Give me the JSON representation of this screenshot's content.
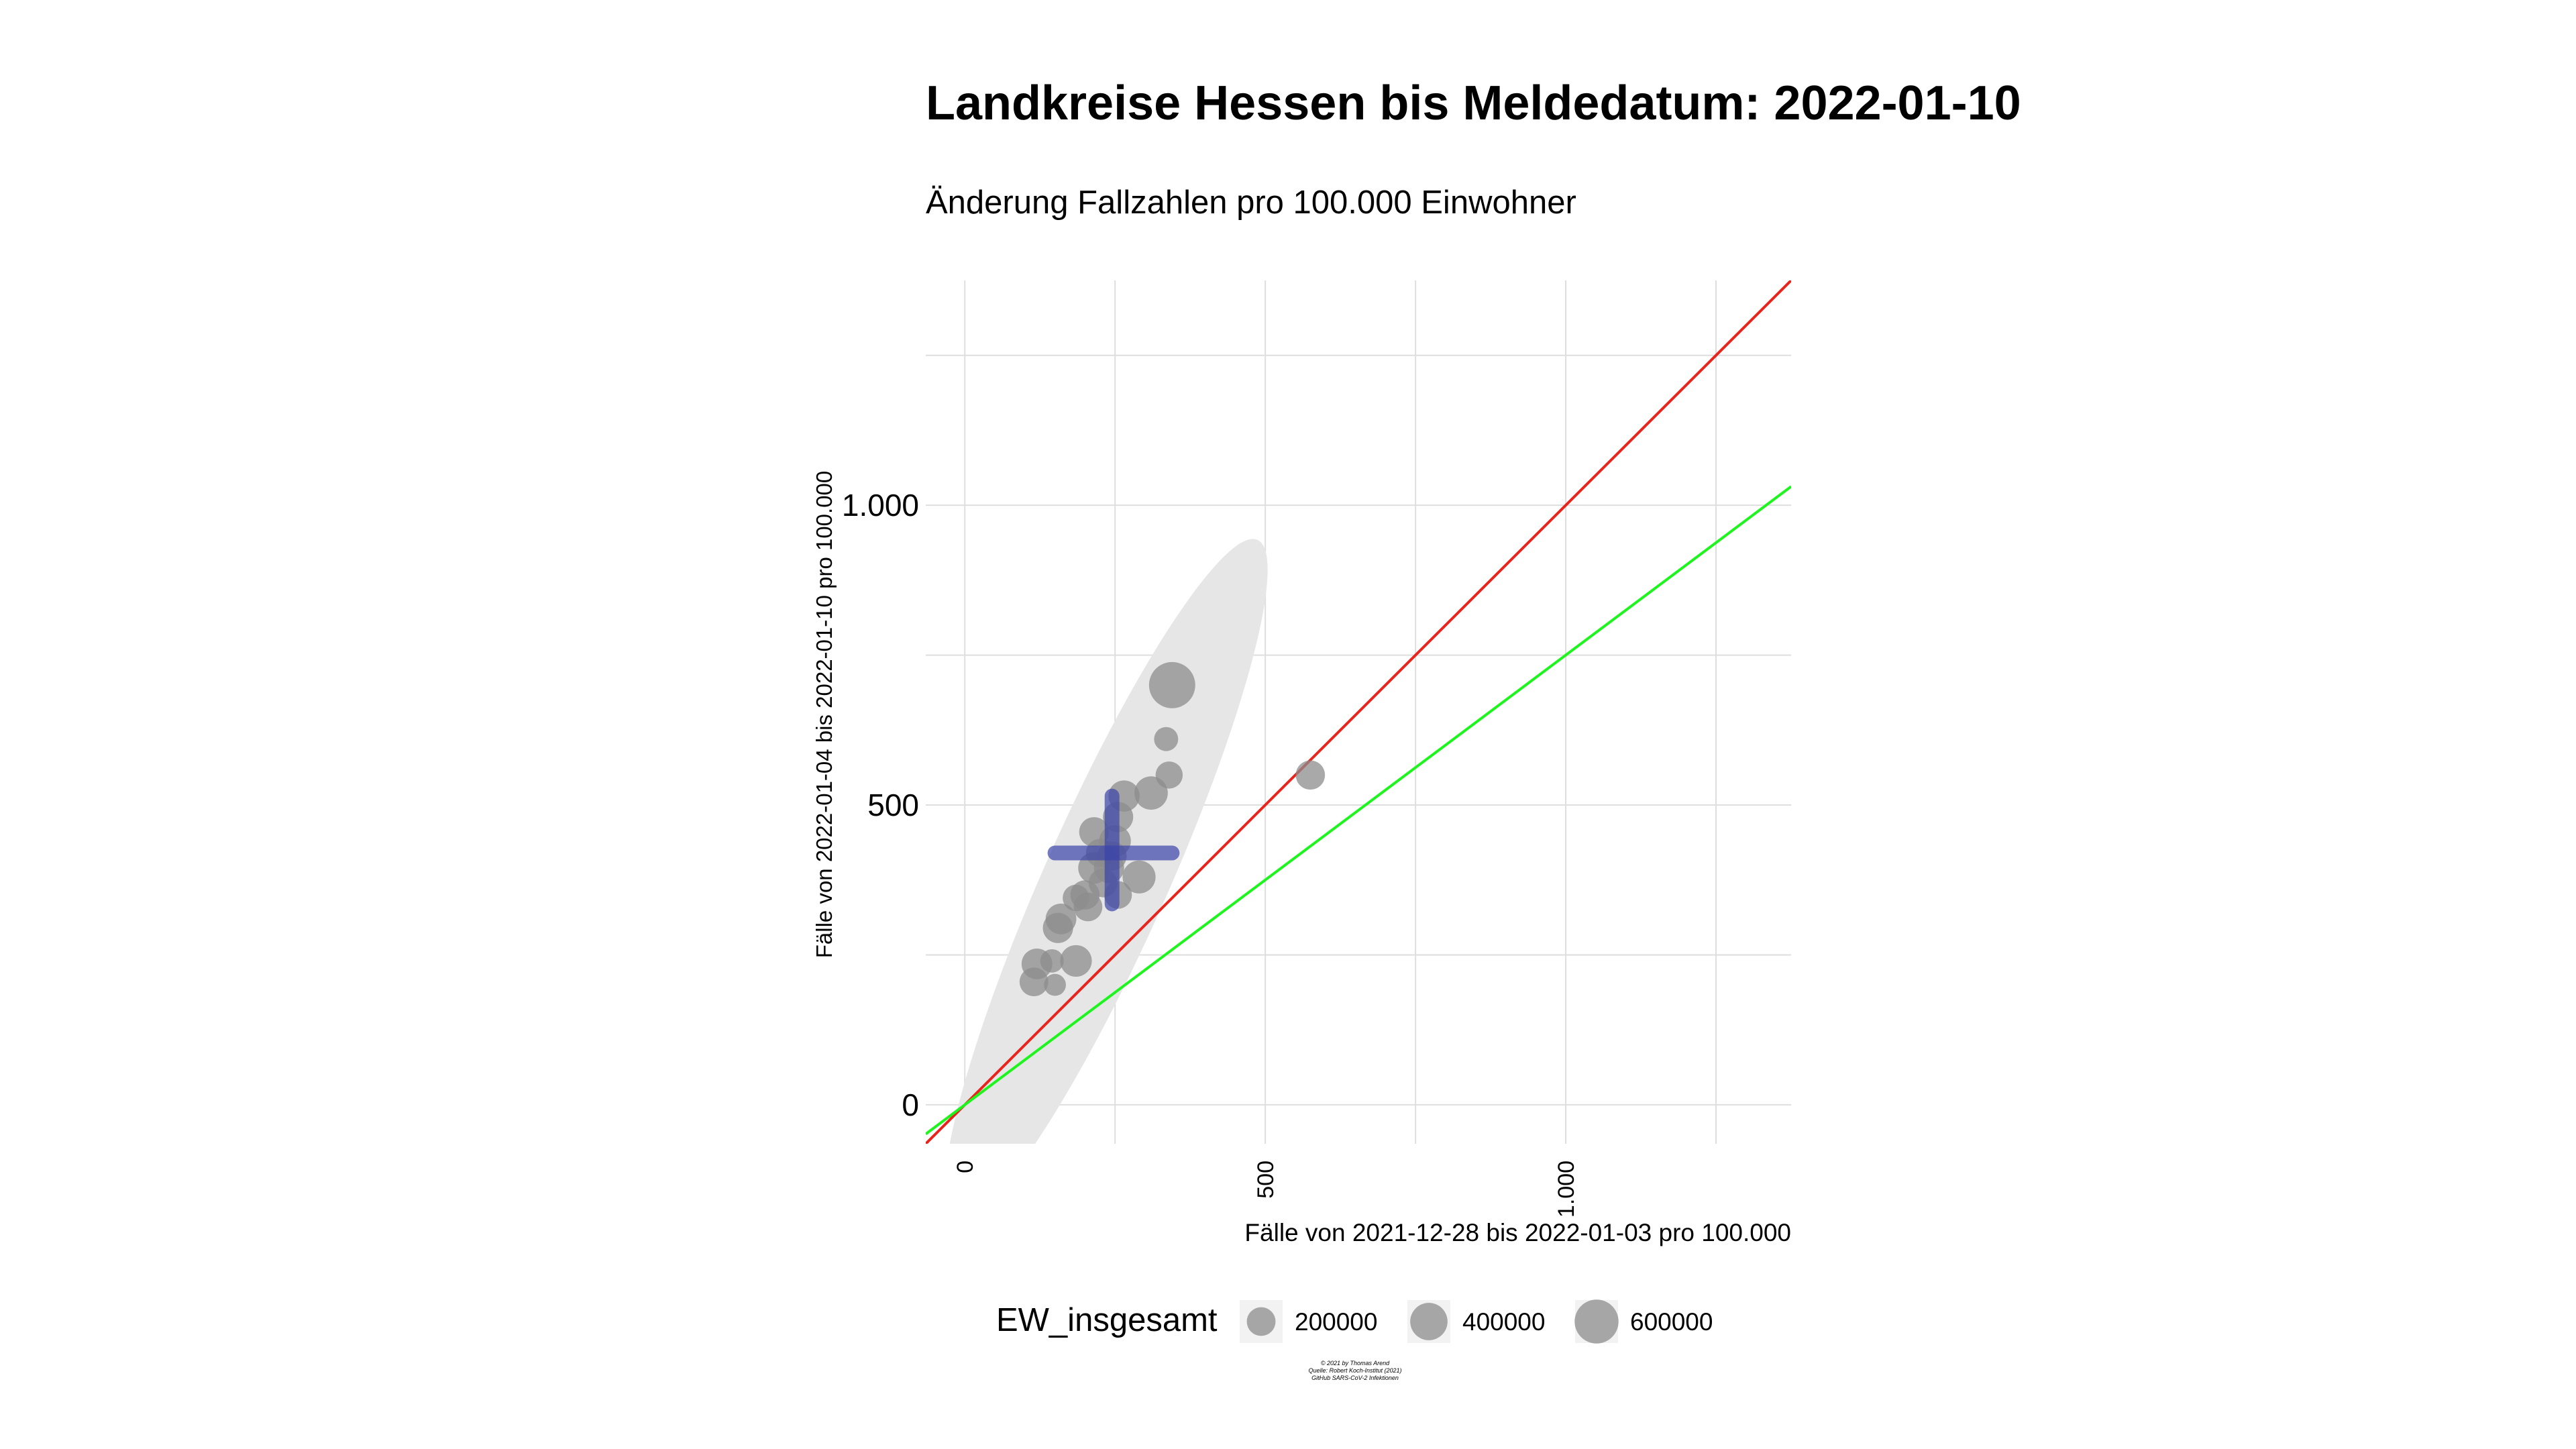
{
  "chart_data": {
    "type": "scatter",
    "title": "Landkreise Hessen bis Meldedatum: 2022-01-10",
    "subtitle": "Änderung Fallzahlen pro 100.000 Einwohner",
    "xlabel": "Fälle von 2021-12-28 bis 2022-01-03 pro 100.000",
    "ylabel": "Fälle von 2022-01-04 bis 2022-01-10 pro 100.000",
    "xlim": [
      -65,
      1375
    ],
    "ylim": [
      -65,
      1375
    ],
    "x_ticks": [
      {
        "value": 0,
        "label": "0"
      },
      {
        "value": 500,
        "label": "500"
      },
      {
        "value": 1000,
        "label": "1.000"
      }
    ],
    "y_ticks": [
      {
        "value": 0,
        "label": "0"
      },
      {
        "value": 500,
        "label": "500"
      },
      {
        "value": 1000,
        "label": "1.000"
      }
    ],
    "grid": true,
    "reference_lines": [
      {
        "slope": 1.0,
        "color": "#e8241c"
      },
      {
        "slope": 0.75,
        "color": "#1ef51e"
      }
    ],
    "ellipse": {
      "center_x": 235,
      "center_y": 375,
      "color": "#e6e6e6"
    },
    "mean_cross": {
      "x": 245,
      "y": 420,
      "x_range": [
        150,
        345
      ],
      "y_range": [
        335,
        515
      ],
      "color": "#3a43a8"
    },
    "points": [
      {
        "x": 345,
        "y": 700,
        "size": 680000
      },
      {
        "x": 335,
        "y": 610,
        "size": 120000
      },
      {
        "x": 340,
        "y": 550,
        "size": 170000
      },
      {
        "x": 575,
        "y": 550,
        "size": 210000
      },
      {
        "x": 265,
        "y": 515,
        "size": 250000
      },
      {
        "x": 310,
        "y": 520,
        "size": 300000
      },
      {
        "x": 255,
        "y": 480,
        "size": 230000
      },
      {
        "x": 215,
        "y": 455,
        "size": 220000
      },
      {
        "x": 250,
        "y": 440,
        "size": 260000
      },
      {
        "x": 225,
        "y": 420,
        "size": 190000
      },
      {
        "x": 245,
        "y": 415,
        "size": 210000
      },
      {
        "x": 215,
        "y": 395,
        "size": 260000
      },
      {
        "x": 240,
        "y": 395,
        "size": 230000
      },
      {
        "x": 230,
        "y": 370,
        "size": 200000
      },
      {
        "x": 290,
        "y": 380,
        "size": 290000
      },
      {
        "x": 255,
        "y": 350,
        "size": 180000
      },
      {
        "x": 200,
        "y": 350,
        "size": 210000
      },
      {
        "x": 185,
        "y": 345,
        "size": 160000
      },
      {
        "x": 205,
        "y": 330,
        "size": 200000
      },
      {
        "x": 160,
        "y": 310,
        "size": 240000
      },
      {
        "x": 155,
        "y": 295,
        "size": 230000
      },
      {
        "x": 185,
        "y": 240,
        "size": 260000
      },
      {
        "x": 120,
        "y": 235,
        "size": 240000
      },
      {
        "x": 145,
        "y": 240,
        "size": 110000
      },
      {
        "x": 115,
        "y": 205,
        "size": 200000
      },
      {
        "x": 150,
        "y": 200,
        "size": 90000
      }
    ],
    "legend": {
      "title": "EW_insgesamt",
      "placement": "bottom",
      "items": [
        {
          "label": "200000",
          "size": 200000
        },
        {
          "label": "400000",
          "size": 400000
        },
        {
          "label": "600000",
          "size": 600000
        }
      ]
    },
    "caption": [
      "© 2021 by Thomas Arend",
      "Quelle: Robert Koch-Institut (2021)",
      "GitHub SARS-CoV-2 Infektionen"
    ]
  }
}
